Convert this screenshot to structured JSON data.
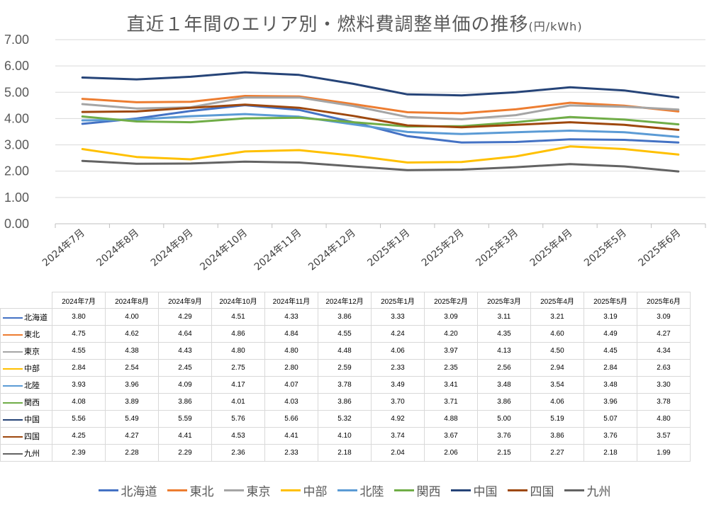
{
  "chart_data": {
    "type": "line",
    "title": "直近１年間のエリア別・燃料費調整単価の推移",
    "unit": "(円/kWh)",
    "ylim": [
      0,
      7
    ],
    "yticks": [
      "0.00",
      "1.00",
      "2.00",
      "3.00",
      "4.00",
      "5.00",
      "6.00",
      "7.00"
    ],
    "grid": true,
    "legend_position": "bottom",
    "categories": [
      "2024年7月",
      "2024年8月",
      "2024年9月",
      "2024年10月",
      "2024年11月",
      "2024年12月",
      "2025年1月",
      "2025年2月",
      "2025年3月",
      "2025年4月",
      "2025年5月",
      "2025年6月"
    ],
    "series": [
      {
        "name": "北海道",
        "color": "#4472C4",
        "values": [
          3.8,
          4.0,
          4.29,
          4.51,
          4.33,
          3.86,
          3.33,
          3.09,
          3.11,
          3.21,
          3.19,
          3.09
        ],
        "labels": [
          "3.80",
          "4.00",
          "4.29",
          "4.51",
          "4.33",
          "3.86",
          "3.33",
          "3.09",
          "3.11",
          "3.21",
          "3.19",
          "3.09"
        ]
      },
      {
        "name": "東北",
        "color": "#ED7D31",
        "values": [
          4.75,
          4.62,
          4.64,
          4.86,
          4.84,
          4.55,
          4.24,
          4.2,
          4.35,
          4.6,
          4.49,
          4.27
        ],
        "labels": [
          "4.75",
          "4.62",
          "4.64",
          "4.86",
          "4.84",
          "4.55",
          "4.24",
          "4.20",
          "4.35",
          "4.60",
          "4.49",
          "4.27"
        ]
      },
      {
        "name": "東京",
        "color": "#A5A5A5",
        "values": [
          4.55,
          4.38,
          4.43,
          4.8,
          4.8,
          4.48,
          4.06,
          3.97,
          4.13,
          4.5,
          4.45,
          4.34
        ],
        "labels": [
          "4.55",
          "4.38",
          "4.43",
          "4.80",
          "4.80",
          "4.48",
          "4.06",
          "3.97",
          "4.13",
          "4.50",
          "4.45",
          "4.34"
        ]
      },
      {
        "name": "中部",
        "color": "#FFC000",
        "values": [
          2.84,
          2.54,
          2.45,
          2.75,
          2.8,
          2.59,
          2.33,
          2.35,
          2.56,
          2.94,
          2.84,
          2.63
        ],
        "labels": [
          "2.84",
          "2.54",
          "2.45",
          "2.75",
          "2.80",
          "2.59",
          "2.33",
          "2.35",
          "2.56",
          "2.94",
          "2.84",
          "2.63"
        ]
      },
      {
        "name": "北陸",
        "color": "#5B9BD5",
        "values": [
          3.93,
          3.96,
          4.09,
          4.17,
          4.07,
          3.78,
          3.49,
          3.41,
          3.48,
          3.54,
          3.48,
          3.3
        ],
        "labels": [
          "3.93",
          "3.96",
          "4.09",
          "4.17",
          "4.07",
          "3.78",
          "3.49",
          "3.41",
          "3.48",
          "3.54",
          "3.48",
          "3.30"
        ]
      },
      {
        "name": "関西",
        "color": "#70AD47",
        "values": [
          4.08,
          3.89,
          3.86,
          4.01,
          4.03,
          3.86,
          3.7,
          3.71,
          3.86,
          4.06,
          3.96,
          3.78
        ],
        "labels": [
          "4.08",
          "3.89",
          "3.86",
          "4.01",
          "4.03",
          "3.86",
          "3.70",
          "3.71",
          "3.86",
          "4.06",
          "3.96",
          "3.78"
        ]
      },
      {
        "name": "中国",
        "color": "#264478",
        "values": [
          5.56,
          5.49,
          5.59,
          5.76,
          5.66,
          5.32,
          4.92,
          4.88,
          5.0,
          5.19,
          5.07,
          4.8
        ],
        "labels": [
          "5.56",
          "5.49",
          "5.59",
          "5.76",
          "5.66",
          "5.32",
          "4.92",
          "4.88",
          "5.00",
          "5.19",
          "5.07",
          "4.80"
        ]
      },
      {
        "name": "四国",
        "color": "#9E480E",
        "values": [
          4.25,
          4.27,
          4.41,
          4.53,
          4.41,
          4.1,
          3.74,
          3.67,
          3.76,
          3.86,
          3.76,
          3.57
        ],
        "labels": [
          "4.25",
          "4.27",
          "4.41",
          "4.53",
          "4.41",
          "4.10",
          "3.74",
          "3.67",
          "3.76",
          "3.86",
          "3.76",
          "3.57"
        ]
      },
      {
        "name": "九州",
        "color": "#636363",
        "values": [
          2.39,
          2.28,
          2.29,
          2.36,
          2.33,
          2.18,
          2.04,
          2.06,
          2.15,
          2.27,
          2.18,
          1.99
        ],
        "labels": [
          "2.39",
          "2.28",
          "2.29",
          "2.36",
          "2.33",
          "2.18",
          "2.04",
          "2.06",
          "2.15",
          "2.27",
          "2.18",
          "1.99"
        ]
      }
    ]
  }
}
